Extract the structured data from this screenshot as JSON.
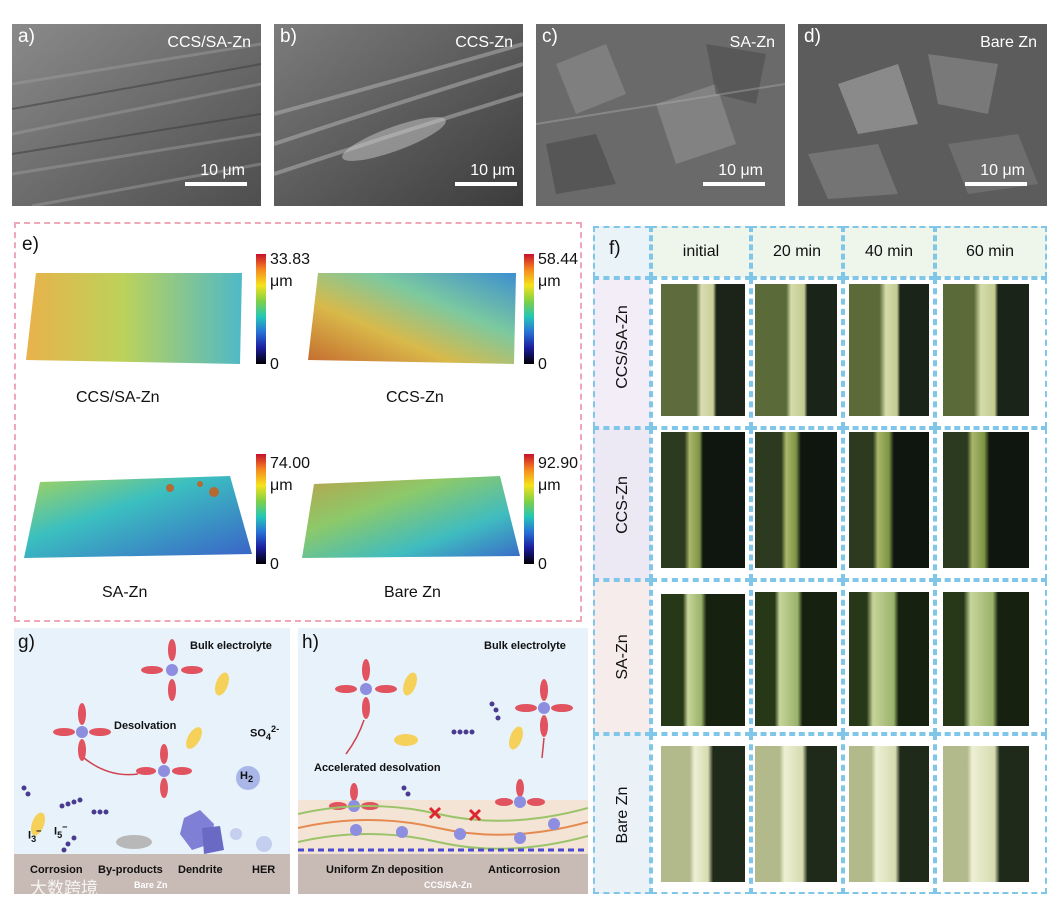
{
  "sem_panels": [
    {
      "label": "a)",
      "sample": "CCS/SA-Zn",
      "scale": "10 μm"
    },
    {
      "label": "b)",
      "sample": "CCS-Zn",
      "scale": "10 μm"
    },
    {
      "label": "c)",
      "sample": "SA-Zn",
      "scale": "10 μm"
    },
    {
      "label": "d)",
      "sample": "Bare Zn",
      "scale": "10 μm"
    }
  ],
  "panel_e": {
    "label": "e)",
    "maps": [
      {
        "caption": "CCS/SA-Zn",
        "max_value": "33.83",
        "unit": "μm",
        "min_value": "0"
      },
      {
        "caption": "CCS-Zn",
        "max_value": "58.44",
        "unit": "μm",
        "min_value": "0"
      },
      {
        "caption": "SA-Zn",
        "max_value": "74.00",
        "unit": "μm",
        "min_value": "0"
      },
      {
        "caption": "Bare Zn",
        "max_value": "92.90",
        "unit": "μm",
        "min_value": "0"
      }
    ]
  },
  "panel_f": {
    "label": "f)",
    "columns": [
      "initial",
      "20 min",
      "40 min",
      "60 min"
    ],
    "rows": [
      "CCS/SA-Zn",
      "CCS-Zn",
      "SA-Zn",
      "Bare Zn"
    ]
  },
  "panel_g": {
    "label": "g)",
    "bulk": "Bulk electrolyte",
    "desolvation": "Desolvation",
    "so4": "SO",
    "so4_sub": "4",
    "so4_sup": "2-",
    "h2": "H",
    "h2_sub": "2",
    "i3": "I",
    "i3_sub": "3",
    "i3_sup": "−",
    "i5": "I",
    "i5_sub": "5",
    "i5_sup": "−",
    "bottom_labels": [
      "Corrosion",
      "By-products",
      "Dendrite",
      "HER"
    ],
    "substrate": "Bare Zn"
  },
  "panel_h": {
    "label": "h)",
    "bulk": "Bulk electrolyte",
    "accelerated": "Accelerated desolvation",
    "bottom_labels": [
      "Uniform Zn deposition",
      "Anticorrosion"
    ],
    "substrate": "CCS/SA-Zn"
  },
  "watermark": "大数跨境"
}
